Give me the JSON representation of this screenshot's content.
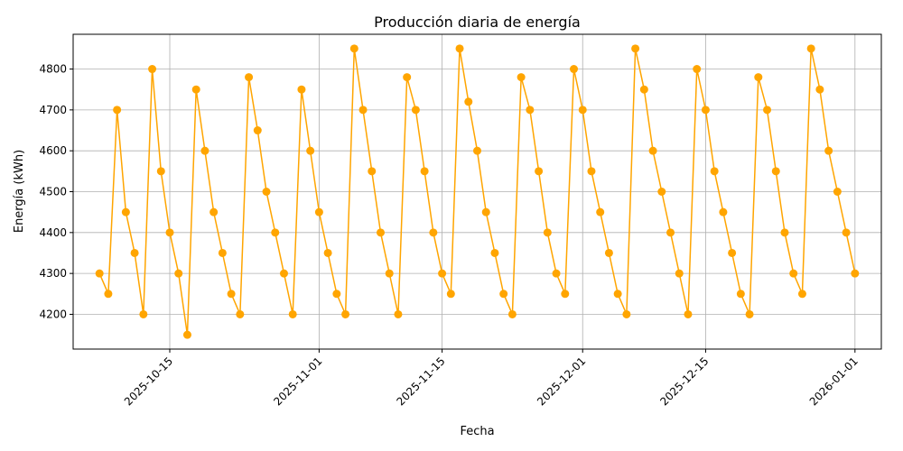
{
  "chart_data": {
    "type": "line",
    "title": "Producción diaria de energía",
    "xlabel": "Fecha",
    "ylabel": "Energía (kWh)",
    "x_start": "2025-10-07",
    "xlim": [
      "2025-10-04",
      "2026-01-04"
    ],
    "ylim": [
      4115,
      4885
    ],
    "grid": true,
    "color": "#FFA500",
    "x_ticks": [
      {
        "date": "2025-10-15",
        "label": "2025-10-15"
      },
      {
        "date": "2025-11-01",
        "label": "2025-11-01"
      },
      {
        "date": "2025-11-15",
        "label": "2025-11-15"
      },
      {
        "date": "2025-12-01",
        "label": "2025-12-01"
      },
      {
        "date": "2025-12-15",
        "label": "2025-12-15"
      },
      {
        "date": "2026-01-01",
        "label": "2026-01-01"
      }
    ],
    "y_ticks": [
      {
        "value": 4200,
        "label": "4200"
      },
      {
        "value": 4300,
        "label": "4300"
      },
      {
        "value": 4400,
        "label": "4400"
      },
      {
        "value": 4500,
        "label": "4500"
      },
      {
        "value": 4600,
        "label": "4600"
      },
      {
        "value": 4700,
        "label": "4700"
      },
      {
        "value": 4800,
        "label": "4800"
      }
    ],
    "values": [
      4300,
      4250,
      4700,
      4450,
      4350,
      4200,
      4800,
      4550,
      4400,
      4300,
      4150,
      4750,
      4600,
      4450,
      4350,
      4250,
      4200,
      4780,
      4650,
      4500,
      4400,
      4300,
      4200,
      4750,
      4600,
      4450,
      4350,
      4250,
      4200,
      4850,
      4700,
      4550,
      4400,
      4300,
      4200,
      4780,
      4700,
      4550,
      4400,
      4300,
      4250,
      4850,
      4720,
      4600,
      4450,
      4350,
      4250,
      4200,
      4780,
      4700,
      4550,
      4400,
      4300,
      4250,
      4800,
      4700,
      4550,
      4450,
      4350,
      4250,
      4200,
      4850,
      4750,
      4600,
      4500,
      4400,
      4300,
      4200,
      4800,
      4700,
      4550,
      4450,
      4350,
      4250,
      4200,
      4780,
      4700,
      4550,
      4400,
      4300,
      4250,
      4850,
      4750,
      4600,
      4500,
      4400,
      4300
    ]
  }
}
